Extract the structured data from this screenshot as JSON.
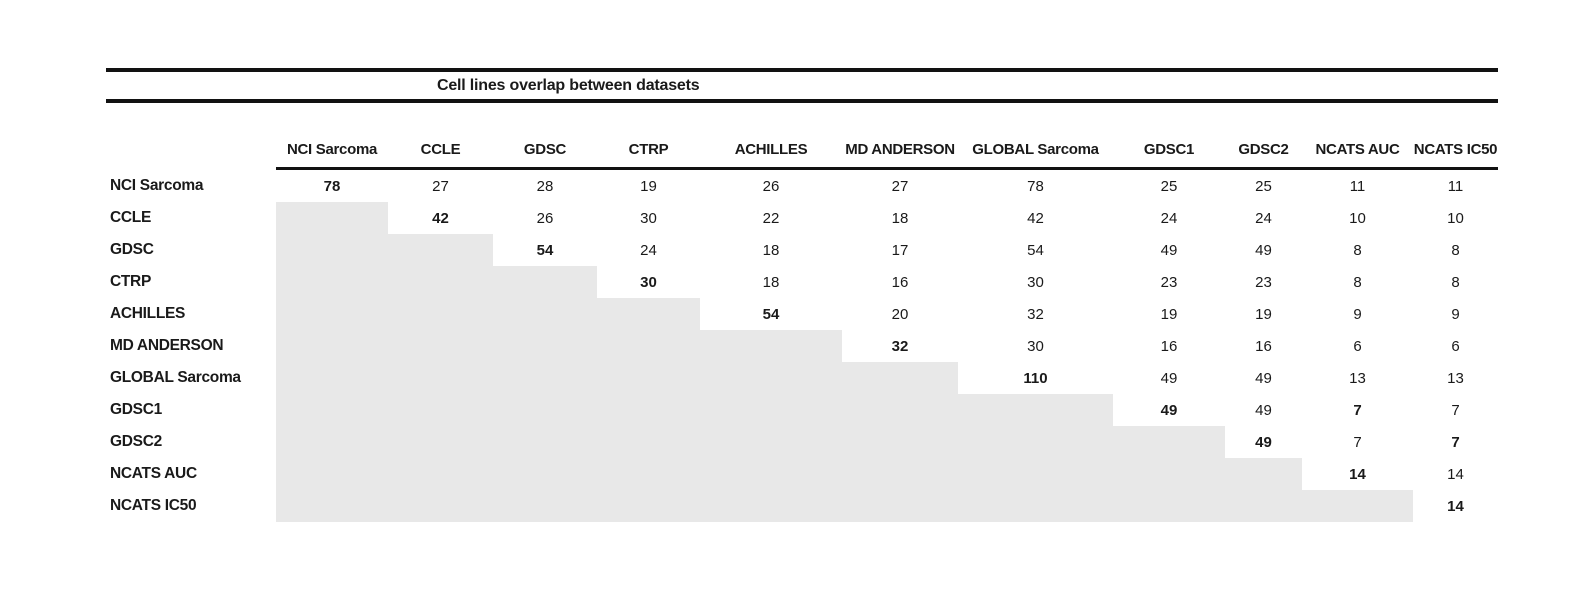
{
  "title": "Cell lines overlap between datasets",
  "colors": {
    "text": "#1a1a1a",
    "rule": "#121212",
    "shaded_cell": "#e8e8e8",
    "background": "#ffffff"
  },
  "table": {
    "columns": [
      "NCI Sarcoma",
      "CCLE",
      "GDSC",
      "CTRP",
      "ACHILLES",
      "MD ANDERSON",
      "GLOBAL Sarcoma",
      "GDSC1",
      "GDSC2",
      "NCATS AUC",
      "NCATS IC50"
    ],
    "rows": [
      {
        "label": "NCI Sarcoma",
        "cells": [
          {
            "v": "78",
            "b": true
          },
          {
            "v": "27"
          },
          {
            "v": "28"
          },
          {
            "v": "19"
          },
          {
            "v": "26"
          },
          {
            "v": "27"
          },
          {
            "v": "78"
          },
          {
            "v": "25"
          },
          {
            "v": "25"
          },
          {
            "v": "11"
          },
          {
            "v": "11"
          }
        ]
      },
      {
        "label": "CCLE",
        "cells": [
          {
            "s": true
          },
          {
            "v": "42",
            "b": true
          },
          {
            "v": "26"
          },
          {
            "v": "30"
          },
          {
            "v": "22"
          },
          {
            "v": "18"
          },
          {
            "v": "42"
          },
          {
            "v": "24"
          },
          {
            "v": "24"
          },
          {
            "v": "10"
          },
          {
            "v": "10"
          }
        ]
      },
      {
        "label": "GDSC",
        "cells": [
          {
            "s": true
          },
          {
            "s": true
          },
          {
            "v": "54",
            "b": true
          },
          {
            "v": "24"
          },
          {
            "v": "18"
          },
          {
            "v": "17"
          },
          {
            "v": "54"
          },
          {
            "v": "49"
          },
          {
            "v": "49"
          },
          {
            "v": "8"
          },
          {
            "v": "8"
          }
        ]
      },
      {
        "label": "CTRP",
        "cells": [
          {
            "s": true
          },
          {
            "s": true
          },
          {
            "s": true
          },
          {
            "v": "30",
            "b": true
          },
          {
            "v": "18"
          },
          {
            "v": "16"
          },
          {
            "v": "30"
          },
          {
            "v": "23"
          },
          {
            "v": "23"
          },
          {
            "v": "8"
          },
          {
            "v": "8"
          }
        ]
      },
      {
        "label": "ACHILLES",
        "cells": [
          {
            "s": true
          },
          {
            "s": true
          },
          {
            "s": true
          },
          {
            "s": true
          },
          {
            "v": "54",
            "b": true
          },
          {
            "v": "20"
          },
          {
            "v": "32"
          },
          {
            "v": "19"
          },
          {
            "v": "19"
          },
          {
            "v": "9"
          },
          {
            "v": "9"
          }
        ]
      },
      {
        "label": "MD ANDERSON",
        "cells": [
          {
            "s": true
          },
          {
            "s": true
          },
          {
            "s": true
          },
          {
            "s": true
          },
          {
            "s": true
          },
          {
            "v": "32",
            "b": true
          },
          {
            "v": "30"
          },
          {
            "v": "16"
          },
          {
            "v": "16"
          },
          {
            "v": "6"
          },
          {
            "v": "6"
          }
        ]
      },
      {
        "label": "GLOBAL Sarcoma",
        "cells": [
          {
            "s": true
          },
          {
            "s": true
          },
          {
            "s": true
          },
          {
            "s": true
          },
          {
            "s": true
          },
          {
            "s": true
          },
          {
            "v": "110",
            "b": true
          },
          {
            "v": "49"
          },
          {
            "v": "49"
          },
          {
            "v": "13"
          },
          {
            "v": "13"
          }
        ]
      },
      {
        "label": "GDSC1",
        "cells": [
          {
            "s": true
          },
          {
            "s": true
          },
          {
            "s": true
          },
          {
            "s": true
          },
          {
            "s": true
          },
          {
            "s": true
          },
          {
            "s": true
          },
          {
            "v": "49",
            "b": true
          },
          {
            "v": "49"
          },
          {
            "v": "7",
            "b": true
          },
          {
            "v": "7"
          }
        ]
      },
      {
        "label": "GDSC2",
        "cells": [
          {
            "s": true
          },
          {
            "s": true
          },
          {
            "s": true
          },
          {
            "s": true
          },
          {
            "s": true
          },
          {
            "s": true
          },
          {
            "s": true
          },
          {
            "s": true
          },
          {
            "v": "49",
            "b": true
          },
          {
            "v": "7"
          },
          {
            "v": "7",
            "b": true
          }
        ]
      },
      {
        "label": "NCATS AUC",
        "cells": [
          {
            "s": true
          },
          {
            "s": true
          },
          {
            "s": true
          },
          {
            "s": true
          },
          {
            "s": true
          },
          {
            "s": true
          },
          {
            "s": true
          },
          {
            "s": true
          },
          {
            "s": true
          },
          {
            "v": "14",
            "b": true
          },
          {
            "v": "14"
          }
        ]
      },
      {
        "label": "NCATS IC50",
        "cells": [
          {
            "s": true
          },
          {
            "s": true
          },
          {
            "s": true
          },
          {
            "s": true
          },
          {
            "s": true
          },
          {
            "s": true
          },
          {
            "s": true
          },
          {
            "s": true
          },
          {
            "s": true
          },
          {
            "s": true
          },
          {
            "v": "14",
            "b": true
          }
        ]
      }
    ]
  }
}
